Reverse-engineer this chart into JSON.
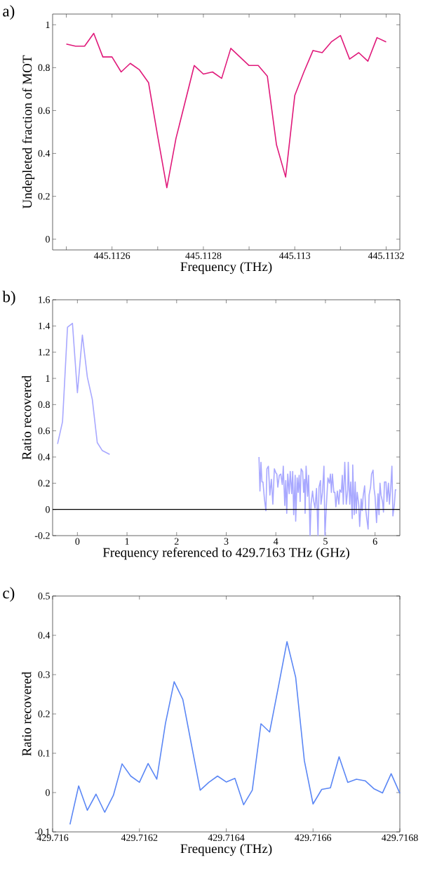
{
  "chart_data": [
    {
      "type": "line",
      "annotations": [
        "a)"
      ],
      "xlabel": "Frequency (THz)",
      "ylabel": "Undepleted fraction of MOT",
      "color": "#e0197a",
      "x": [
        445.1125,
        445.11252,
        445.11254,
        445.11256,
        445.11258,
        445.1126,
        445.11262,
        445.11264,
        445.11266,
        445.11268,
        445.1127,
        445.11272,
        445.11274,
        445.11276,
        445.11278,
        445.1128,
        445.11282,
        445.11284,
        445.11286,
        445.11288,
        445.1129,
        445.11292,
        445.11294,
        445.11296,
        445.11298,
        445.113,
        445.11302,
        445.11304,
        445.11306,
        445.11308,
        445.1131,
        445.11312,
        445.11314,
        445.11316,
        445.11318,
        445.1132
      ],
      "values": [
        0.91,
        0.9,
        0.9,
        0.96,
        0.85,
        0.85,
        0.78,
        0.82,
        0.79,
        0.73,
        0.48,
        0.24,
        0.47,
        0.64,
        0.81,
        0.77,
        0.78,
        0.75,
        0.89,
        0.85,
        0.81,
        0.81,
        0.76,
        0.44,
        0.29,
        0.67,
        0.78,
        0.88,
        0.87,
        0.92,
        0.95,
        0.84,
        0.87,
        0.83,
        0.94,
        0.92
      ],
      "xlim": [
        445.11247,
        445.11323
      ],
      "ylim": [
        -0.05,
        1.05
      ],
      "xticks": [
        {
          "value": 445.1125,
          "label": null
        },
        445.1126,
        {
          "value": 445.1127,
          "label": null
        },
        445.1128,
        {
          "value": 445.1129,
          "label": null
        },
        445.113,
        {
          "value": 445.1131,
          "label": null
        },
        445.1132
      ],
      "yticks": [
        0,
        0.2,
        0.4,
        0.6,
        0.8,
        1
      ]
    },
    {
      "type": "line",
      "annotations": [
        "b)"
      ],
      "xlabel": "Frequency referenced to 429.7163 THz (GHz)",
      "ylabel": "Ratio recovered",
      "series": [
        {
          "color": "#a8a8ff",
          "x": [
            -0.4,
            -0.3,
            -0.2,
            -0.1,
            0,
            0.1,
            0.2,
            0.3,
            0.4,
            0.5,
            0.65
          ],
          "values": [
            0.5,
            0.67,
            1.39,
            1.42,
            0.89,
            1.33,
            1.01,
            0.84,
            0.51,
            0.45,
            0.42
          ]
        },
        {
          "color": "#a8a8ff",
          "x": [
            3.66,
            3.68,
            3.7,
            3.72,
            3.74,
            3.77,
            3.8,
            3.82,
            3.85,
            3.88,
            3.91,
            3.94,
            3.97,
            4.0,
            4.02,
            4.04,
            4.07,
            4.1,
            4.13,
            4.15,
            4.18,
            4.2,
            4.22,
            4.24,
            4.27,
            4.29,
            4.32,
            4.34,
            4.36,
            4.39,
            4.4,
            4.43,
            4.45,
            4.47,
            4.49,
            4.51,
            4.54,
            4.56,
            4.58,
            4.59,
            4.61,
            4.64,
            4.66,
            4.69,
            4.71,
            4.74,
            4.76,
            4.79,
            4.82,
            4.85,
            4.87,
            4.9,
            4.91,
            4.94,
            4.97,
            4.99,
            5.02,
            5.05,
            5.08,
            5.1,
            5.12,
            5.14,
            5.17,
            5.19,
            5.21,
            5.24,
            5.27,
            5.29,
            5.32,
            5.34,
            5.36,
            5.39,
            5.42,
            5.45,
            5.46,
            5.49,
            5.51,
            5.54,
            5.55,
            5.58,
            5.6,
            5.62,
            5.64,
            5.67,
            5.69,
            5.72,
            5.74,
            5.76,
            5.79,
            5.81,
            5.83,
            5.86,
            5.88,
            5.91,
            5.93,
            5.96,
            5.98,
            6.0,
            6.03,
            6.06,
            6.08,
            6.1,
            6.12,
            6.15,
            6.17,
            6.19,
            6.22,
            6.24,
            6.27,
            6.29,
            6.32,
            6.34,
            6.36,
            6.39,
            6.41,
            6.43
          ],
          "values": [
            0.4,
            0.14,
            0.36,
            0.21,
            0.21,
            0.08,
            -0.01,
            0.31,
            0.33,
            0.11,
            0.23,
            0.04,
            0.31,
            0.28,
            0.27,
            0.17,
            0.26,
            0.27,
            0.19,
            0.33,
            0.03,
            0.22,
            -0.03,
            0.27,
            0.12,
            0.29,
            0.12,
            0.29,
            -0.04,
            0.26,
            -0.09,
            0.24,
            0.13,
            0.26,
            0.06,
            0.31,
            0.29,
            0.13,
            0.23,
            -0.03,
            0.33,
            0.1,
            0.26,
            -0.2,
            0.04,
            0.14,
            0.07,
            0.01,
            0.16,
            -0.2,
            0.17,
            0.22,
            0.04,
            0.13,
            0.33,
            -0.2,
            0.04,
            0.24,
            0.2,
            0.27,
            0.13,
            0.27,
            0.13,
            0.13,
            0.02,
            0.14,
            0.04,
            0.15,
            0.13,
            0.26,
            0.04,
            0.36,
            0.04,
            0.15,
            0.36,
            0.04,
            0.21,
            -0.07,
            0.34,
            -0.04,
            0.21,
            -0.03,
            0.13,
            0.04,
            -0.13,
            0.08,
            -0.01,
            0.1,
            0.18,
            0.01,
            -0.06,
            -0.15,
            0.11,
            0.17,
            0.27,
            0.3,
            0.16,
            0.1,
            -0.1,
            0.12,
            -0.04,
            0.2,
            0.11,
            0.06,
            -0.02,
            0.21,
            0.21,
            0.06,
            0.2,
            0.04,
            0.19,
            0.33,
            -0.05,
            0.04,
            0.15,
            0.15
          ]
        }
      ],
      "ref_lines": [
        {
          "axis": "y",
          "value": 0,
          "color": "#000000"
        }
      ],
      "xlim": [
        -0.5,
        6.5
      ],
      "ylim": [
        -0.2,
        1.6
      ],
      "xticks": [
        0,
        1,
        2,
        3,
        4,
        5,
        6
      ],
      "yticks": [
        -0.2,
        0,
        0.2,
        0.4,
        0.6,
        0.8,
        1,
        1.2,
        1.4,
        1.6
      ]
    },
    {
      "type": "line",
      "annotations": [
        "c)"
      ],
      "xlabel": "Frequency (THz)",
      "ylabel": "Ratio recovered",
      "color": "#5b87f5",
      "x": [
        429.71604,
        429.71606,
        429.71608,
        429.7161,
        429.71612,
        429.71614,
        429.71616,
        429.71618,
        429.7162,
        429.71622,
        429.71624,
        429.71626,
        429.71628,
        429.7163,
        429.71632,
        429.71634,
        429.71636,
        429.71638,
        429.7164,
        429.71642,
        429.71644,
        429.71646,
        429.71648,
        429.7165,
        429.71652,
        429.71654,
        429.71656,
        429.71658,
        429.7166,
        429.71662,
        429.71664,
        429.71666,
        429.71668,
        429.7167,
        429.71672,
        429.71674,
        429.71676,
        429.71678,
        429.7168
      ],
      "values": [
        -0.081,
        0.017,
        -0.045,
        -0.004,
        -0.05,
        -0.007,
        0.073,
        0.042,
        0.026,
        0.074,
        0.034,
        0.176,
        0.282,
        0.237,
        0.121,
        0.006,
        0.026,
        0.042,
        0.027,
        0.036,
        -0.031,
        0.006,
        0.175,
        0.154,
        0.268,
        0.384,
        0.293,
        0.081,
        -0.029,
        0.008,
        0.012,
        0.091,
        0.026,
        0.034,
        0.03,
        0.01,
        -0.001,
        0.048,
        -0.002
      ],
      "xlim": [
        429.716,
        429.7168
      ],
      "ylim": [
        -0.1,
        0.5
      ],
      "xticks": [
        429.716,
        429.7162,
        429.7164,
        429.7166,
        429.7168
      ],
      "yticks": [
        -0.1,
        0,
        0.1,
        0.2,
        0.3,
        0.4,
        0.5
      ]
    }
  ]
}
